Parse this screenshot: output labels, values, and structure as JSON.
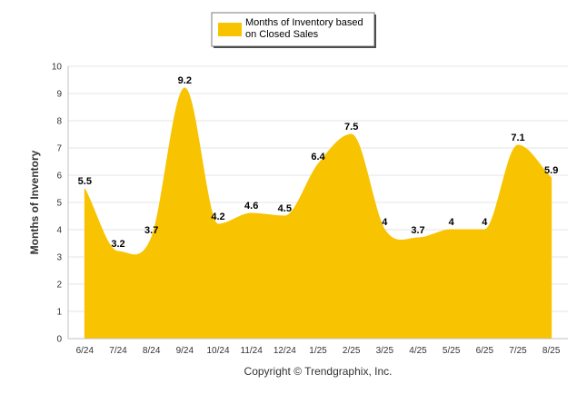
{
  "chart_data": {
    "type": "area",
    "categories": [
      "6/24",
      "7/24",
      "8/24",
      "9/24",
      "10/24",
      "11/24",
      "12/24",
      "1/25",
      "2/25",
      "3/25",
      "4/25",
      "5/25",
      "6/25",
      "7/25",
      "8/25"
    ],
    "series": [
      {
        "name": "Months of Inventory based on Closed Sales",
        "values": [
          5.5,
          3.2,
          3.7,
          9.2,
          4.2,
          4.6,
          4.5,
          6.4,
          7.5,
          4,
          3.7,
          4,
          4,
          7.1,
          5.9
        ],
        "data_labels": [
          "5.5",
          "3.2",
          "3.7",
          "9.2",
          "4.2",
          "4.6",
          "4.5",
          "6.4",
          "7.5",
          "4",
          "3.7",
          "4",
          "4",
          "7.1",
          "5.9"
        ],
        "color": "#F8C300"
      }
    ],
    "xlabel": "",
    "ylabel": "Months of Inventory",
    "ylim": [
      0,
      10
    ],
    "yticks": [
      "0",
      "1",
      "2",
      "3",
      "4",
      "5",
      "6",
      "7",
      "8",
      "9",
      "10"
    ],
    "grid": true,
    "legend": {
      "position": "top-center",
      "lines": [
        "Months of Inventory based",
        "on Closed Sales"
      ]
    },
    "footer": "Copyright © Trendgraphix, Inc."
  }
}
